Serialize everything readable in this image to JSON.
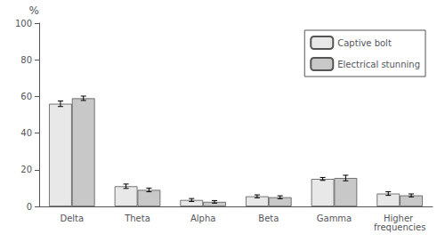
{
  "chart_data": {
    "type": "bar",
    "ylabel": "%",
    "categories": [
      "Delta",
      "Theta",
      "Alpha",
      "Beta",
      "Gamma",
      "Higher frequencies"
    ],
    "series": [
      {
        "name": "Captive bolt",
        "color": "#e8e8e8",
        "values": [
          56,
          11,
          3.5,
          5.5,
          15,
          7
        ],
        "errors": [
          1.5,
          1.2,
          0.8,
          0.8,
          0.8,
          1.0
        ]
      },
      {
        "name": "Electrical stunning",
        "color": "#c8c8c8",
        "values": [
          59,
          9,
          2.5,
          5,
          15.5,
          6
        ],
        "errors": [
          1.2,
          1.0,
          0.7,
          0.8,
          1.5,
          0.8
        ]
      }
    ],
    "ylim": [
      0,
      100
    ],
    "yticks": [
      0,
      20,
      40,
      60,
      80,
      100
    ],
    "grid": false,
    "legend": "upper right"
  }
}
